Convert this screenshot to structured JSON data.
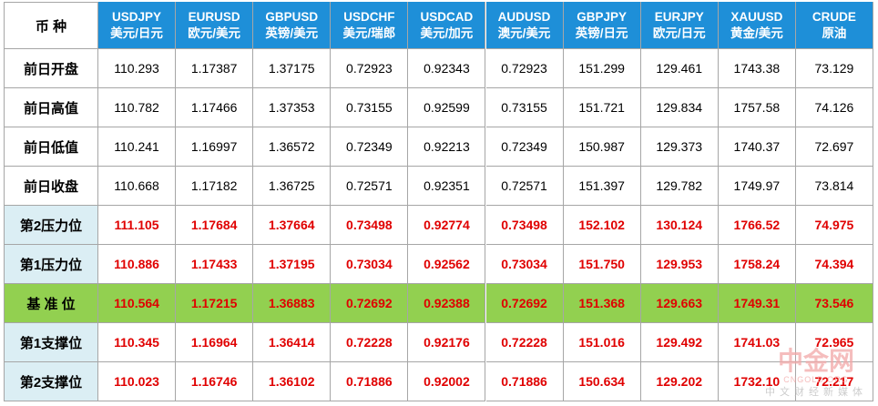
{
  "table": {
    "corner": "币 种",
    "columns": [
      {
        "code": "USDJPY",
        "name": "美元/日元"
      },
      {
        "code": "EURUSD",
        "name": "欧元/美元"
      },
      {
        "code": "GBPUSD",
        "name": "英镑/美元"
      },
      {
        "code": "USDCHF",
        "name": "美元/瑞郎"
      },
      {
        "code": "USDCAD",
        "name": "美元/加元"
      },
      {
        "code": "AUDUSD",
        "name": "澳元/美元"
      },
      {
        "code": "GBPJPY",
        "name": "英镑/日元"
      },
      {
        "code": "EURJPY",
        "name": "欧元/日元"
      },
      {
        "code": "XAUUSD",
        "name": "黄金/美元"
      },
      {
        "code": "CRUDE",
        "name": "原油"
      }
    ],
    "rows": [
      {
        "label": "前日开盘",
        "values": [
          "110.293",
          "1.17387",
          "1.37175",
          "0.72923",
          "0.92343",
          "0.72923",
          "151.299",
          "129.461",
          "1743.38",
          "73.129"
        ]
      },
      {
        "label": "前日高值",
        "values": [
          "110.782",
          "1.17466",
          "1.37353",
          "0.73155",
          "0.92599",
          "0.73155",
          "151.721",
          "129.834",
          "1757.58",
          "74.126"
        ]
      },
      {
        "label": "前日低值",
        "values": [
          "110.241",
          "1.16997",
          "1.36572",
          "0.72349",
          "0.92213",
          "0.72349",
          "150.987",
          "129.373",
          "1740.37",
          "72.697"
        ]
      },
      {
        "label": "前日收盘",
        "values": [
          "110.668",
          "1.17182",
          "1.36725",
          "0.72571",
          "0.92351",
          "0.72571",
          "151.397",
          "129.782",
          "1749.97",
          "73.814"
        ]
      },
      {
        "label": "第2压力位",
        "values": [
          "111.105",
          "1.17684",
          "1.37664",
          "0.73498",
          "0.92774",
          "0.73498",
          "152.102",
          "130.124",
          "1766.52",
          "74.975"
        ]
      },
      {
        "label": "第1压力位",
        "values": [
          "110.886",
          "1.17433",
          "1.37195",
          "0.73034",
          "0.92562",
          "0.73034",
          "151.750",
          "129.953",
          "1758.24",
          "74.394"
        ]
      },
      {
        "label": "基 准 位",
        "values": [
          "110.564",
          "1.17215",
          "1.36883",
          "0.72692",
          "0.92388",
          "0.72692",
          "151.368",
          "129.663",
          "1749.31",
          "73.546"
        ]
      },
      {
        "label": "第1支撑位",
        "values": [
          "110.345",
          "1.16964",
          "1.36414",
          "0.72228",
          "0.92176",
          "0.72228",
          "151.016",
          "129.492",
          "1741.03",
          "72.965"
        ]
      },
      {
        "label": "第2支撑位",
        "values": [
          "110.023",
          "1.16746",
          "1.36102",
          "0.71886",
          "0.92002",
          "0.71886",
          "150.634",
          "129.202",
          "1732.10",
          "72.217"
        ]
      }
    ]
  },
  "watermark": {
    "logo": "中金网",
    "domain": "CNGOLD.ORG",
    "slogan": "中文财经新媒体"
  }
}
